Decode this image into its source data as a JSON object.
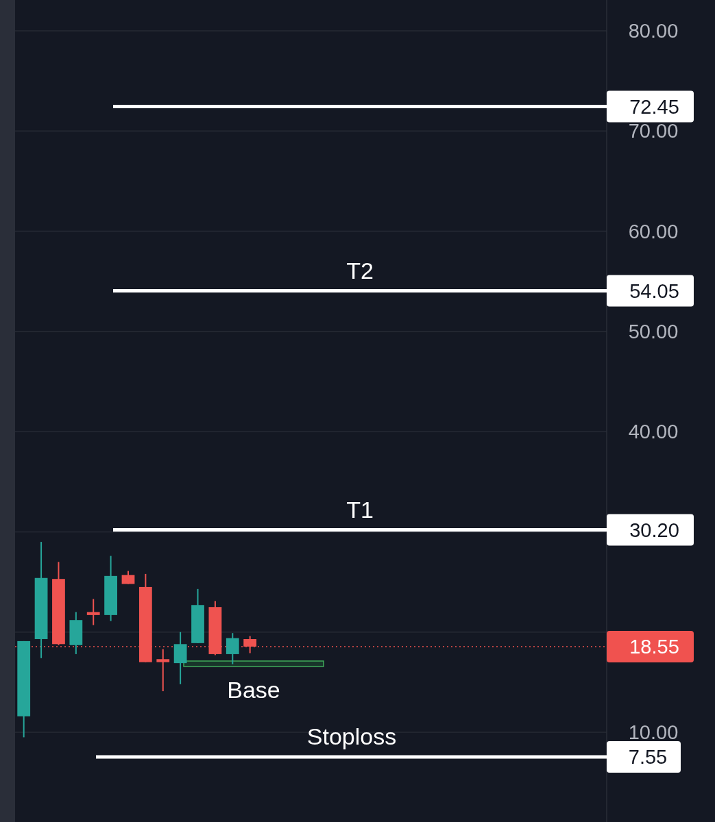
{
  "chart_data": {
    "type": "candlestick",
    "categories": [
      null,
      null,
      null,
      null,
      null,
      null,
      null,
      null,
      null,
      null,
      null,
      null,
      null,
      null,
      null,
      null,
      null,
      null,
      null,
      null,
      null,
      null,
      null,
      null,
      null,
      null,
      null,
      null,
      null,
      null,
      null,
      null,
      null,
      null
    ],
    "ohlc": [
      [
        11.6,
        19.1,
        9.5,
        19.1
      ],
      [
        19.3,
        29.0,
        17.4,
        25.4
      ],
      [
        25.3,
        27.0,
        18.7,
        18.8
      ],
      [
        18.7,
        22.0,
        17.8,
        21.2
      ],
      [
        22.0,
        23.3,
        20.7,
        21.7
      ],
      [
        21.7,
        27.6,
        21.1,
        25.6
      ],
      [
        25.7,
        26.1,
        24.8,
        24.8
      ],
      [
        24.5,
        25.8,
        17.0,
        17.0
      ],
      [
        17.3,
        18.3,
        14.1,
        17.0
      ],
      [
        16.9,
        20.0,
        14.8,
        18.8
      ],
      [
        18.9,
        24.3,
        18.9,
        22.7
      ],
      [
        22.5,
        23.1,
        17.7,
        17.8
      ],
      [
        17.8,
        19.9,
        16.8,
        19.4
      ],
      [
        19.3,
        19.6,
        17.9,
        18.55
      ],
      null,
      null,
      null,
      null,
      null,
      null,
      null,
      null,
      null,
      null,
      null,
      null,
      null,
      null,
      null,
      null,
      null,
      null,
      null,
      null
    ],
    "ylim": [
      1.05,
      83.07
    ],
    "yticks": [
      {
        "value": 10,
        "label": "10.00"
      },
      {
        "value": 20,
        "label": null
      },
      {
        "value": 30,
        "label": null
      },
      {
        "value": 40,
        "label": "40.00"
      },
      {
        "value": 50,
        "label": "50.00"
      },
      {
        "value": 60,
        "label": "60.00"
      },
      {
        "value": 70,
        "label": "70.00"
      },
      {
        "value": 80,
        "label": "80.00"
      }
    ],
    "tick_labels": "y",
    "grid": "y",
    "ref_lines": [
      {
        "axis": "y",
        "value": 72.45,
        "label": "72.45",
        "color": "#ffffff",
        "line_style": "solid"
      },
      {
        "axis": "y",
        "value": 54.05,
        "label": "54.05",
        "color": "#ffffff",
        "line_style": "solid"
      },
      {
        "axis": "y",
        "value": 30.2,
        "label": "30.20",
        "color": "#ffffff",
        "line_style": "solid"
      },
      {
        "axis": "y",
        "value": 18.55,
        "label": "18.55",
        "color": "#f0524f",
        "line_style": "dotted"
      },
      {
        "axis": "y",
        "value": 7.55,
        "label": "7.55",
        "color": "#ffffff",
        "line_style": "solid"
      }
    ],
    "annotations": [
      {
        "text": "T2",
        "y": 54.05
      },
      {
        "text": "T1",
        "y": 30.2
      },
      "Base",
      {
        "text": "Stoploss",
        "y": 7.55
      }
    ]
  }
}
